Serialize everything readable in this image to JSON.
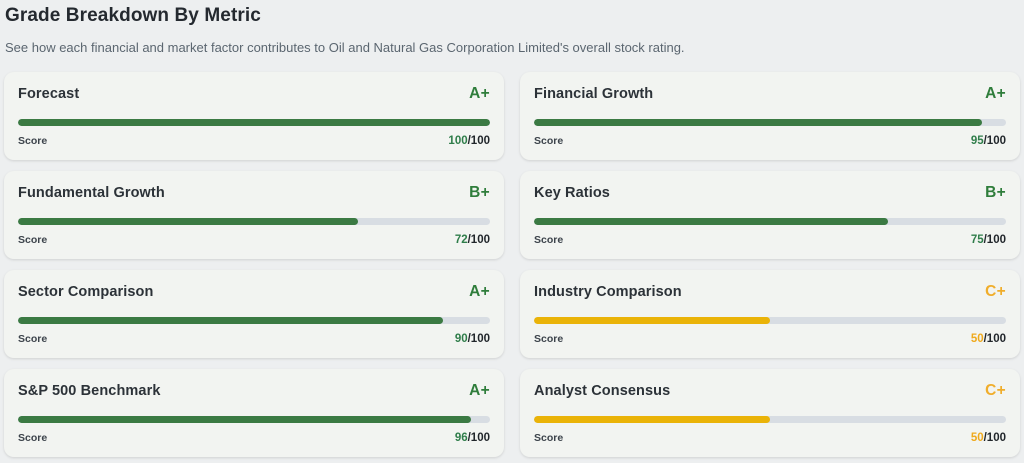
{
  "header": {
    "title": "Grade Breakdown By Metric",
    "subtitle": "See how each financial and market factor contributes to Oil and Natural Gas Corporation Limited's overall stock rating."
  },
  "score_label": "Score",
  "score_denominator": "/100",
  "colors": {
    "page_bg": "#edeff0",
    "card_bg": "#f2f4f1",
    "track": "#d8dde3",
    "green": {
      "bar": "#3b7a43",
      "grade": "#2f7d3b",
      "score": "#2f7d4a"
    },
    "amber": {
      "bar": "#eab308",
      "grade": "#f0ad2b",
      "score": "#efa91c"
    }
  },
  "metrics": [
    {
      "name": "Forecast",
      "grade": "A+",
      "score": 100,
      "max": 100,
      "tone": "green"
    },
    {
      "name": "Financial Growth",
      "grade": "A+",
      "score": 95,
      "max": 100,
      "tone": "green"
    },
    {
      "name": "Fundamental Growth",
      "grade": "B+",
      "score": 72,
      "max": 100,
      "tone": "green"
    },
    {
      "name": "Key Ratios",
      "grade": "B+",
      "score": 75,
      "max": 100,
      "tone": "green"
    },
    {
      "name": "Sector Comparison",
      "grade": "A+",
      "score": 90,
      "max": 100,
      "tone": "green"
    },
    {
      "name": "Industry Comparison",
      "grade": "C+",
      "score": 50,
      "max": 100,
      "tone": "amber"
    },
    {
      "name": "S&P 500 Benchmark",
      "grade": "A+",
      "score": 96,
      "max": 100,
      "tone": "green"
    },
    {
      "name": "Analyst Consensus",
      "grade": "C+",
      "score": 50,
      "max": 100,
      "tone": "amber"
    }
  ]
}
